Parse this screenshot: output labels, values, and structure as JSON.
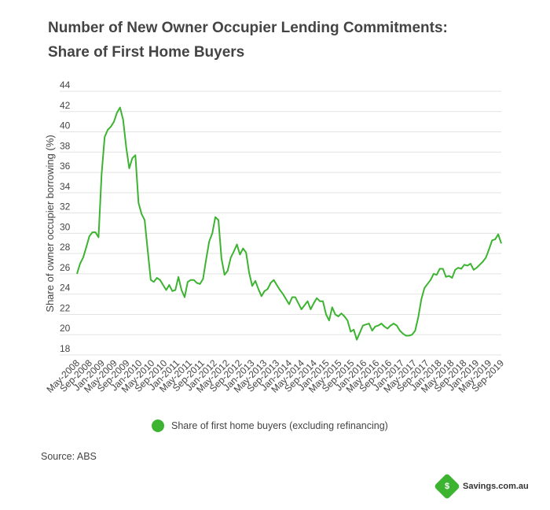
{
  "title": "Number of New Owner Occupier Lending Commitments: Share of First Home Buyers",
  "legend": {
    "label": "Share of first home buyers (excluding refinancing)"
  },
  "source": "Source: ABS",
  "brand": {
    "name": "Savings.com.au",
    "icon": "savings-logo-icon"
  },
  "colors": {
    "series": "#3cb431",
    "grid": "#e3e3e3",
    "text": "#444444"
  },
  "chart_data": {
    "type": "line",
    "title": "Number of New Owner Occupier Lending Commitments: Share of First Home Buyers",
    "ylabel": "Share of owner occupier borrowing (%)",
    "xlabel": "",
    "ylim": [
      18,
      44
    ],
    "yticks": [
      18,
      20,
      22,
      24,
      26,
      28,
      30,
      32,
      34,
      36,
      38,
      40,
      42,
      44
    ],
    "grid": true,
    "legend_position": "bottom-center",
    "x_start": "May-2008",
    "x_end": "Sep-2019",
    "x_tick_labels": [
      "May-2008",
      "Sep-2008",
      "Jan-2009",
      "May-2009",
      "Sep-2009",
      "Jan-2010",
      "May-2010",
      "Sep-2010",
      "Jan-2011",
      "May-2011",
      "Sep-2011",
      "Jan-2012",
      "May-2012",
      "Sep-2012",
      "Jan-2013",
      "May-2013",
      "Sep-2013",
      "Jan-2014",
      "May-2014",
      "Sep-2014",
      "Jan-2015",
      "May-2015",
      "Sep-2015",
      "Jan-2016",
      "May-2016",
      "Sep-2016",
      "Jan-2017",
      "May-2017",
      "Sep-2017",
      "Jan-2018",
      "May-2018",
      "Sep-2018",
      "Jan-2019",
      "May-2019",
      "Sep-2019"
    ],
    "series": [
      {
        "name": "Share of first home buyers (excluding refinancing)",
        "values": [
          26.0,
          27.0,
          27.6,
          28.6,
          29.7,
          30.1,
          30.1,
          29.6,
          35.8,
          39.5,
          40.2,
          40.5,
          41.0,
          41.9,
          42.4,
          41.2,
          38.5,
          36.4,
          37.4,
          37.7,
          33.0,
          31.9,
          31.3,
          28.3,
          25.4,
          25.2,
          25.6,
          25.4,
          24.9,
          24.4,
          24.9,
          24.3,
          24.4,
          25.7,
          24.4,
          23.7,
          25.2,
          25.4,
          25.4,
          25.1,
          25.0,
          25.5,
          27.4,
          29.2,
          30.0,
          31.6,
          31.3,
          27.5,
          25.9,
          26.3,
          27.6,
          28.2,
          28.9,
          27.9,
          28.5,
          28.1,
          26.1,
          24.8,
          25.3,
          24.5,
          23.8,
          24.3,
          24.5,
          25.1,
          25.4,
          24.9,
          24.4,
          24.0,
          23.5,
          23.0,
          23.7,
          23.7,
          23.1,
          22.5,
          22.9,
          23.3,
          22.5,
          23.1,
          23.6,
          23.3,
          23.3,
          22.0,
          21.4,
          22.7,
          22.0,
          21.8,
          22.1,
          21.8,
          21.4,
          20.3,
          20.5,
          19.5,
          20.2,
          20.9,
          21.0,
          21.1,
          20.4,
          20.8,
          20.9,
          21.1,
          20.8,
          20.6,
          20.9,
          21.1,
          20.9,
          20.4,
          20.1,
          19.9,
          19.9,
          20.0,
          20.4,
          21.7,
          23.5,
          24.6,
          25.0,
          25.4,
          26.0,
          25.9,
          26.5,
          26.5,
          25.7,
          25.8,
          25.6,
          26.4,
          26.6,
          26.5,
          26.9,
          26.8,
          27.0,
          26.4,
          26.6,
          26.9,
          27.2,
          27.6,
          28.4,
          29.3,
          29.4,
          29.9,
          29.0
        ]
      }
    ]
  }
}
